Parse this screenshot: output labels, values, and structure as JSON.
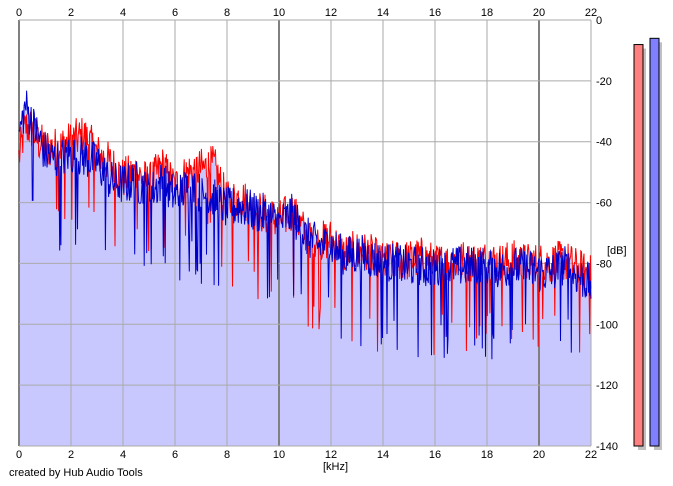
{
  "credit": "created by Hub Audio Tools",
  "colors": {
    "background": "#ffffff",
    "fill": "#c8c8ff",
    "grid": "#aaaaaa",
    "grid_major": "#808080",
    "left_channel": "#ff0000",
    "right_channel": "#0000cc",
    "meter_left": "#ff8080",
    "meter_right": "#8080ff",
    "meter_shadow": "#c0c0c0"
  },
  "chart_data": {
    "type": "line",
    "xlabel": "[kHz]",
    "ylabel": "[dB]",
    "xlim": [
      0,
      22
    ],
    "ylim": [
      -140,
      0
    ],
    "x_ticks": [
      "0",
      "2",
      "4",
      "6",
      "8",
      "10",
      "12",
      "14",
      "16",
      "18",
      "20",
      "22"
    ],
    "y_ticks": [
      "0",
      "-20",
      "-40",
      "-60",
      "-80",
      "-100",
      "-120",
      "-140"
    ],
    "grid": true,
    "legend": "none",
    "series": [
      {
        "color": "#ff0000",
        "x": [
          0,
          0.25,
          0.5,
          0.75,
          1,
          1.5,
          2,
          2.5,
          3,
          3.5,
          4,
          4.5,
          5,
          5.5,
          6,
          6.5,
          7,
          7.5,
          8,
          8.5,
          9,
          9.5,
          10,
          10.5,
          11,
          11.5,
          12,
          12.5,
          13,
          13.5,
          14,
          14.5,
          15,
          15.5,
          16,
          16.5,
          17,
          17.5,
          18,
          18.5,
          19,
          19.5,
          20,
          20.5,
          21,
          21.5,
          22
        ],
        "y": [
          -45,
          -35,
          -36,
          -40,
          -42,
          -42,
          -40,
          -38,
          -44,
          -47,
          -52,
          -50,
          -54,
          -48,
          -55,
          -50,
          -49,
          -48,
          -60,
          -58,
          -62,
          -64,
          -66,
          -63,
          -70,
          -73,
          -72,
          -77,
          -76,
          -77,
          -80,
          -79,
          -79,
          -78,
          -80,
          -80,
          -79,
          -80,
          -79,
          -80,
          -79,
          -80,
          -80,
          -80,
          -79,
          -82,
          -84
        ]
      },
      {
        "color": "#0000cc",
        "x": [
          0,
          0.25,
          0.5,
          0.75,
          1,
          1.5,
          2,
          2.5,
          3,
          3.5,
          4,
          4.5,
          5,
          5.5,
          6,
          6.5,
          7,
          7.5,
          8,
          8.5,
          9,
          9.5,
          10,
          10.5,
          11,
          11.5,
          12,
          12.5,
          13,
          13.5,
          14,
          14.5,
          15,
          15.5,
          16,
          16.5,
          17,
          17.5,
          18,
          18.5,
          19,
          19.5,
          20,
          20.5,
          21,
          21.5,
          22
        ],
        "y": [
          -38,
          -28,
          -34,
          -38,
          -44,
          -46,
          -44,
          -45,
          -47,
          -53,
          -54,
          -53,
          -57,
          -53,
          -58,
          -55,
          -57,
          -59,
          -62,
          -61,
          -63,
          -64,
          -67,
          -64,
          -71,
          -74,
          -74,
          -78,
          -77,
          -78,
          -80,
          -80,
          -81,
          -81,
          -82,
          -81,
          -81,
          -81,
          -81,
          -82,
          -81,
          -82,
          -83,
          -83,
          -81,
          -84,
          -87
        ]
      }
    ],
    "meters": {
      "left_level": 0.965,
      "right_level": 0.98
    }
  }
}
